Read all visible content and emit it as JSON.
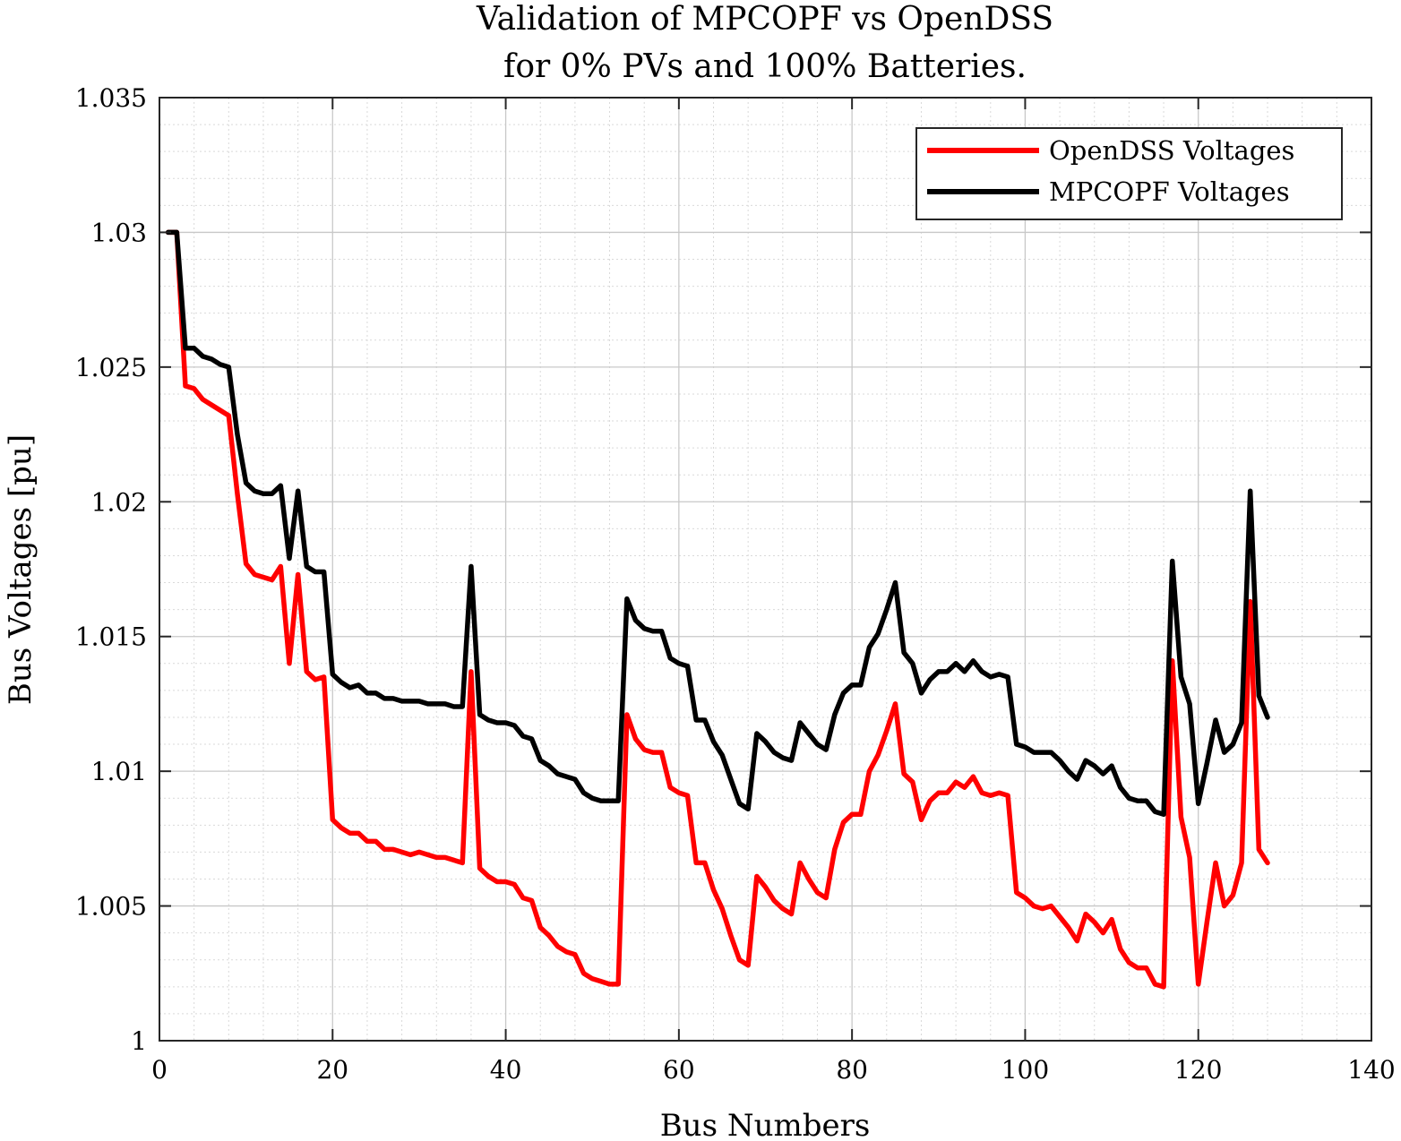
{
  "chart_data": {
    "type": "line",
    "title": [
      "Validation of MPCOPF vs OpenDSS",
      "for 0% PVs and 100% Batteries."
    ],
    "xlabel": "Bus Numbers",
    "ylabel": "Bus Voltages [pu]",
    "xlim": [
      0,
      140
    ],
    "ylim": [
      1.0,
      1.035
    ],
    "xticks": [
      0,
      20,
      40,
      60,
      80,
      100,
      120,
      140
    ],
    "yticks": [
      1.0,
      1.005,
      1.01,
      1.015,
      1.02,
      1.025,
      1.03,
      1.035
    ],
    "xtick_labels": [
      "0",
      "20",
      "40",
      "60",
      "80",
      "100",
      "120",
      "140"
    ],
    "ytick_labels": [
      "1",
      "1.005",
      "1.01",
      "1.015",
      "1.02",
      "1.025",
      "1.03",
      "1.035"
    ],
    "grid": true,
    "minor_grid": true,
    "legend_position": "top-right",
    "x": [
      1,
      2,
      3,
      4,
      5,
      6,
      7,
      8,
      9,
      10,
      11,
      12,
      13,
      14,
      15,
      16,
      17,
      18,
      19,
      20,
      21,
      22,
      23,
      24,
      25,
      26,
      27,
      28,
      29,
      30,
      31,
      32,
      33,
      34,
      35,
      36,
      37,
      38,
      39,
      40,
      41,
      42,
      43,
      44,
      45,
      46,
      47,
      48,
      49,
      50,
      51,
      52,
      53,
      54,
      55,
      56,
      57,
      58,
      59,
      60,
      61,
      62,
      63,
      64,
      65,
      66,
      67,
      68,
      69,
      70,
      71,
      72,
      73,
      74,
      75,
      76,
      77,
      78,
      79,
      80,
      81,
      82,
      83,
      84,
      85,
      86,
      87,
      88,
      89,
      90,
      91,
      92,
      93,
      94,
      95,
      96,
      97,
      98,
      99,
      100,
      101,
      102,
      103,
      104,
      105,
      106,
      107,
      108,
      109,
      110,
      111,
      112,
      113,
      114,
      115,
      116,
      117,
      118,
      119,
      120,
      121,
      122,
      123,
      124,
      125,
      126,
      127,
      128
    ],
    "series": [
      {
        "name": "OpenDSS Voltages",
        "color": "#ff0000",
        "values": [
          1.03,
          1.03,
          1.0243,
          1.0242,
          1.0238,
          1.0236,
          1.0234,
          1.0232,
          1.0203,
          1.0177,
          1.0173,
          1.0172,
          1.0171,
          1.0176,
          1.014,
          1.0173,
          1.0137,
          1.0134,
          1.0135,
          1.0082,
          1.0079,
          1.0077,
          1.0077,
          1.0074,
          1.0074,
          1.0071,
          1.0071,
          1.007,
          1.0069,
          1.007,
          1.0069,
          1.0068,
          1.0068,
          1.0067,
          1.0066,
          1.0137,
          1.0064,
          1.0061,
          1.0059,
          1.0059,
          1.0058,
          1.0053,
          1.0052,
          1.0042,
          1.0039,
          1.0035,
          1.0033,
          1.0032,
          1.0025,
          1.0023,
          1.0022,
          1.0021,
          1.0021,
          1.0121,
          1.0112,
          1.0108,
          1.0107,
          1.0107,
          1.0094,
          1.0092,
          1.0091,
          1.0066,
          1.0066,
          1.0056,
          1.0049,
          1.0039,
          1.003,
          1.0028,
          1.0061,
          1.0057,
          1.0052,
          1.0049,
          1.0047,
          1.0066,
          1.006,
          1.0055,
          1.0053,
          1.0071,
          1.0081,
          1.0084,
          1.0084,
          1.01,
          1.0106,
          1.0115,
          1.0125,
          1.0099,
          1.0096,
          1.0082,
          1.0089,
          1.0092,
          1.0092,
          1.0096,
          1.0094,
          1.0098,
          1.0092,
          1.0091,
          1.0092,
          1.0091,
          1.0055,
          1.0053,
          1.005,
          1.0049,
          1.005,
          1.0046,
          1.0042,
          1.0037,
          1.0047,
          1.0044,
          1.004,
          1.0045,
          1.0034,
          1.0029,
          1.0027,
          1.0027,
          1.0021,
          1.002,
          1.0141,
          1.0083,
          1.0068,
          1.0021,
          1.0044,
          1.0066,
          1.005,
          1.0054,
          1.0066,
          1.0163,
          1.0071,
          1.0066
        ]
      },
      {
        "name": "MPCOPF Voltages",
        "color": "#000000",
        "values": [
          1.03,
          1.03,
          1.0257,
          1.0257,
          1.0254,
          1.0253,
          1.0251,
          1.025,
          1.0225,
          1.0207,
          1.0204,
          1.0203,
          1.0203,
          1.0206,
          1.0179,
          1.0204,
          1.0176,
          1.0174,
          1.0174,
          1.0136,
          1.0133,
          1.0131,
          1.0132,
          1.0129,
          1.0129,
          1.0127,
          1.0127,
          1.0126,
          1.0126,
          1.0126,
          1.0125,
          1.0125,
          1.0125,
          1.0124,
          1.0124,
          1.0176,
          1.0121,
          1.0119,
          1.0118,
          1.0118,
          1.0117,
          1.0113,
          1.0112,
          1.0104,
          1.0102,
          1.0099,
          1.0098,
          1.0097,
          1.0092,
          1.009,
          1.0089,
          1.0089,
          1.0089,
          1.0164,
          1.0156,
          1.0153,
          1.0152,
          1.0152,
          1.0142,
          1.014,
          1.0139,
          1.0119,
          1.0119,
          1.0111,
          1.0106,
          1.0097,
          1.0088,
          1.0086,
          1.0114,
          1.0111,
          1.0107,
          1.0105,
          1.0104,
          1.0118,
          1.0114,
          1.011,
          1.0108,
          1.0121,
          1.0129,
          1.0132,
          1.0132,
          1.0146,
          1.0151,
          1.016,
          1.017,
          1.0144,
          1.014,
          1.0129,
          1.0134,
          1.0137,
          1.0137,
          1.014,
          1.0137,
          1.0141,
          1.0137,
          1.0135,
          1.0136,
          1.0135,
          1.011,
          1.0109,
          1.0107,
          1.0107,
          1.0107,
          1.0104,
          1.01,
          1.0097,
          1.0104,
          1.0102,
          1.0099,
          1.0102,
          1.0094,
          1.009,
          1.0089,
          1.0089,
          1.0085,
          1.0084,
          1.0178,
          1.0135,
          1.0125,
          1.0088,
          1.0103,
          1.0119,
          1.0107,
          1.011,
          1.0118,
          1.0204,
          1.0128,
          1.012
        ]
      }
    ]
  }
}
